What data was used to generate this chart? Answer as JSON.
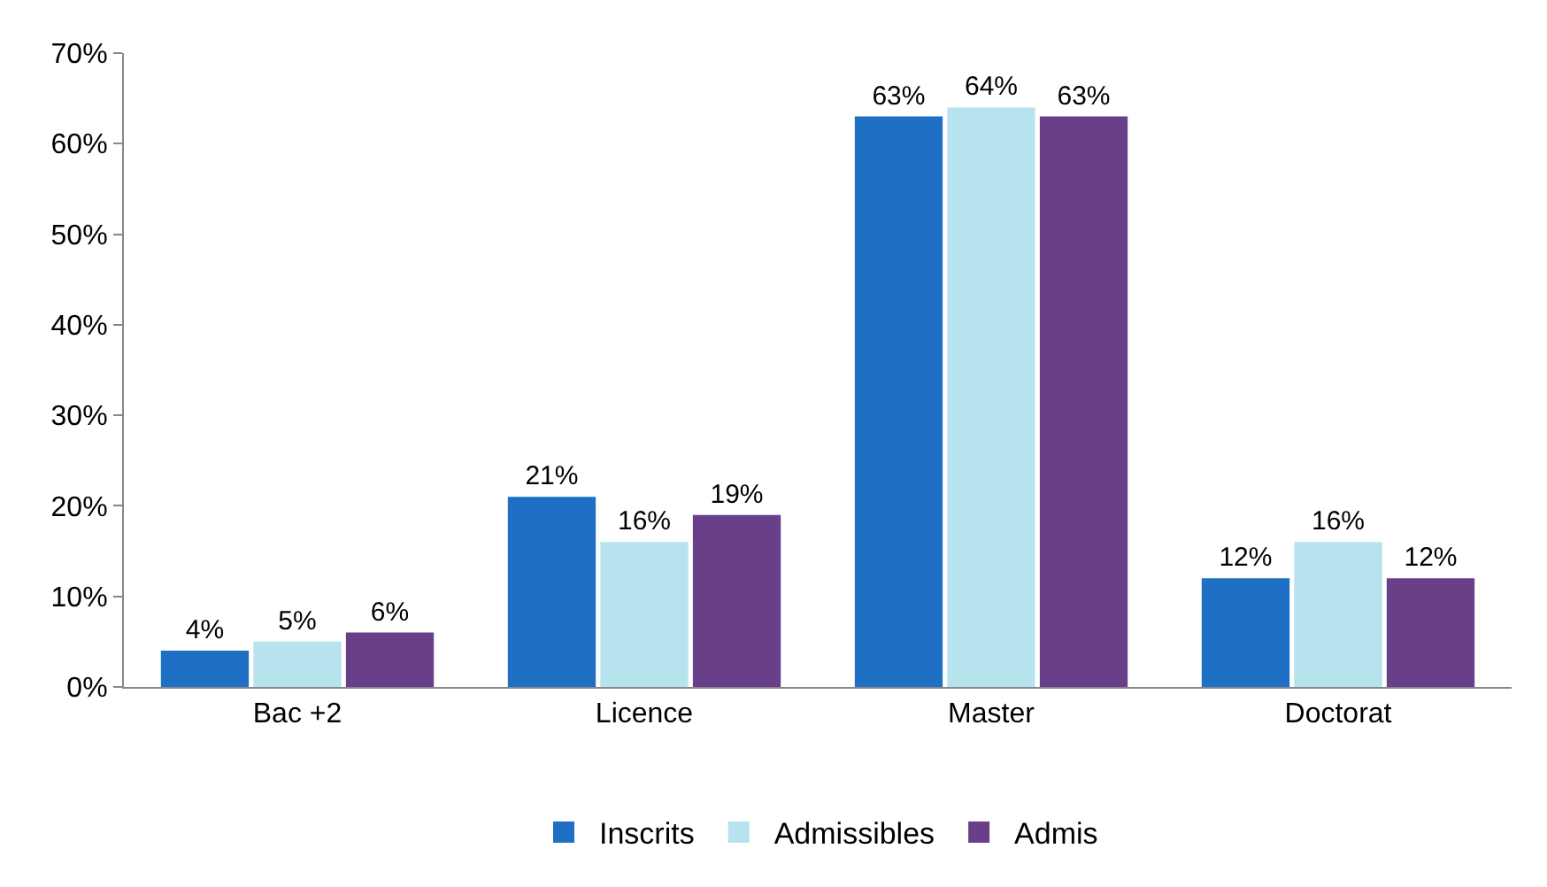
{
  "chart_data": {
    "type": "bar",
    "categories": [
      "Bac +2",
      "Licence",
      "Master",
      "Doctorat"
    ],
    "series": [
      {
        "name": "Inscrits",
        "color": "#1f6fc5",
        "values": [
          4,
          21,
          63,
          12
        ],
        "value_labels": [
          "4%",
          "21%",
          "63%",
          "12%"
        ]
      },
      {
        "name": "Admissibles",
        "color": "#b7e3ef",
        "values": [
          5,
          16,
          64,
          16
        ],
        "value_labels": [
          "5%",
          "16%",
          "64%",
          "16%"
        ]
      },
      {
        "name": "Admis",
        "color": "#6a3f8a",
        "values": [
          6,
          19,
          63,
          12
        ],
        "value_labels": [
          "6%",
          "19%",
          "63%",
          "12%"
        ]
      }
    ],
    "ylim": [
      0,
      70
    ],
    "yticks": [
      {
        "value": 0,
        "label": "0%"
      },
      {
        "value": 10,
        "label": "10%"
      },
      {
        "value": 20,
        "label": "20%"
      },
      {
        "value": 30,
        "label": "30%"
      },
      {
        "value": 40,
        "label": "40%"
      },
      {
        "value": 50,
        "label": "50%"
      },
      {
        "value": 60,
        "label": "60%"
      },
      {
        "value": 70,
        "label": "70%"
      }
    ],
    "legend": "bottom"
  }
}
